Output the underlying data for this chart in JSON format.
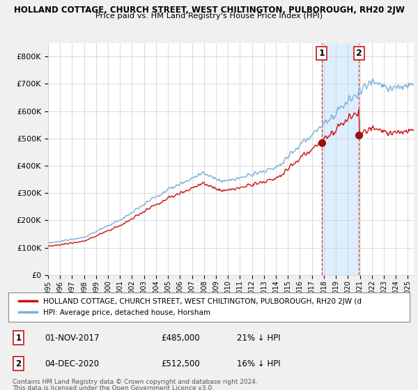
{
  "title": "HOLLAND COTTAGE, CHURCH STREET, WEST CHILTINGTON, PULBOROUGH, RH20 2JW",
  "subtitle": "Price paid vs. HM Land Registry's House Price Index (HPI)",
  "ylim": [
    0,
    850000
  ],
  "yticks": [
    0,
    100000,
    200000,
    300000,
    400000,
    500000,
    600000,
    700000,
    800000
  ],
  "ytick_labels": [
    "£0",
    "£100K",
    "£200K",
    "£300K",
    "£400K",
    "£500K",
    "£600K",
    "£700K",
    "£800K"
  ],
  "bg_color": "#f0f0f0",
  "plot_bg_color": "#ffffff",
  "hpi_color": "#7ab0d8",
  "price_color": "#cc1111",
  "shade_color": "#ddeeff",
  "sale1_date": 2017.83,
  "sale1_price": 485000,
  "sale2_date": 2020.92,
  "sale2_price": 512500,
  "legend_price_label": "HOLLAND COTTAGE, CHURCH STREET, WEST CHILTINGTON, PULBOROUGH, RH20 2JW (d",
  "legend_hpi_label": "HPI: Average price, detached house, Horsham",
  "footnote1": "Contains HM Land Registry data © Crown copyright and database right 2024.",
  "footnote2": "This data is licensed under the Open Government Licence v3.0.",
  "table_row1": [
    "1",
    "01-NOV-2017",
    "£485,000",
    "21% ↓ HPI"
  ],
  "table_row2": [
    "2",
    "04-DEC-2020",
    "£512,500",
    "16% ↓ HPI"
  ],
  "xmin": 1995,
  "xmax": 2025.5
}
